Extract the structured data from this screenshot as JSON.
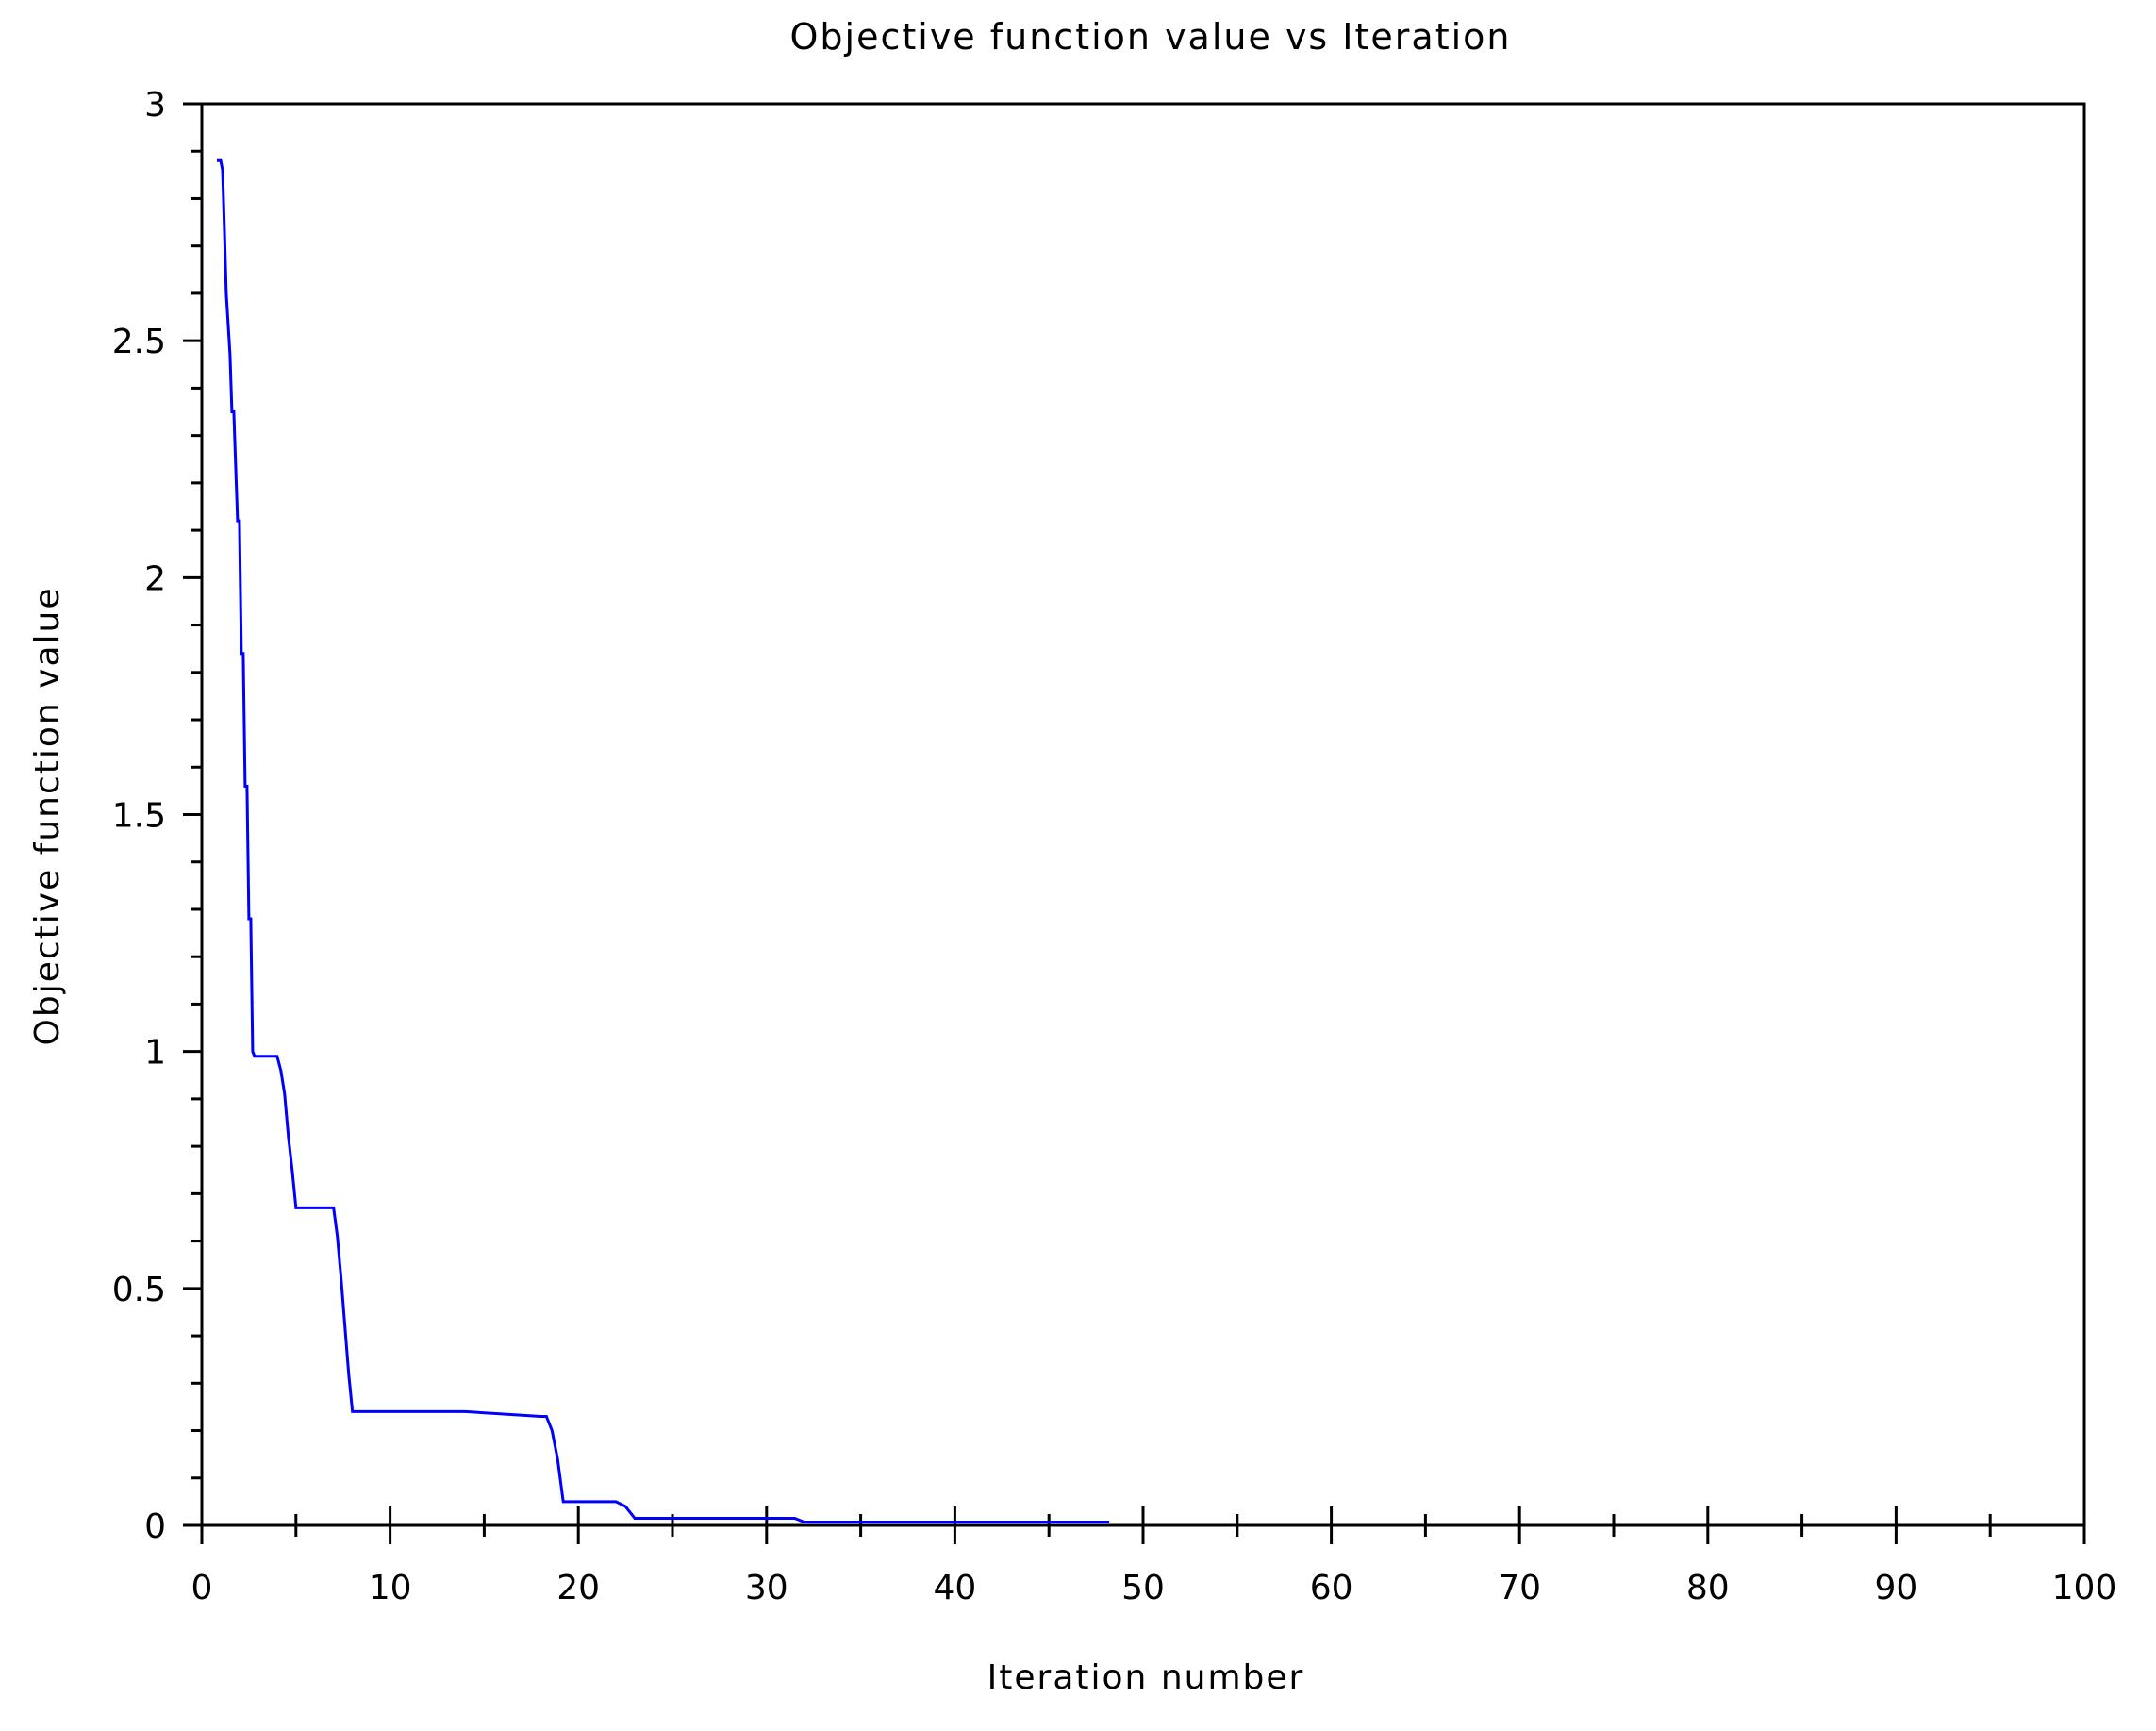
{
  "chart_data": {
    "type": "line",
    "title": "Objective function value vs Iteration",
    "xlabel": "Iteration number",
    "ylabel": "Objective function value",
    "xlim": [
      0,
      100
    ],
    "ylim": [
      0,
      3
    ],
    "x_ticks": [
      0,
      10,
      20,
      30,
      40,
      50,
      60,
      70,
      80,
      90,
      100
    ],
    "x_tick_labels": [
      "0",
      "10",
      "20",
      "30",
      "40",
      "50",
      "60",
      "70",
      "80",
      "90",
      "100"
    ],
    "y_ticks": [
      0,
      0.5,
      1,
      1.5,
      2,
      2.5,
      3
    ],
    "y_tick_labels": [
      "0",
      "0.5",
      "1",
      "1.5",
      "2",
      "2.5",
      "3"
    ],
    "grid": false,
    "legend": "none",
    "line_color": "#0000ff",
    "series": [
      {
        "x": [
          0.8,
          1.0,
          1.1,
          1.2,
          1.3,
          1.5,
          1.6,
          1.7,
          1.9,
          2.0,
          2.1,
          2.2,
          2.3,
          2.4,
          2.5,
          2.6,
          2.7,
          2.8,
          3.0,
          4.0,
          4.2,
          4.4,
          4.6,
          4.8,
          5.0,
          7.0,
          7.2,
          7.4,
          7.6,
          7.8,
          8.0,
          14.0,
          18.0,
          18.3,
          18.6,
          18.9,
          19.2,
          22.0,
          22.5,
          23.0,
          31.5,
          32.0,
          48.2
        ],
        "y": [
          2.88,
          2.88,
          2.86,
          2.73,
          2.6,
          2.47,
          2.35,
          2.35,
          2.12,
          2.12,
          1.84,
          1.84,
          1.56,
          1.56,
          1.28,
          1.28,
          1.0,
          0.99,
          0.99,
          0.99,
          0.96,
          0.91,
          0.82,
          0.75,
          0.67,
          0.67,
          0.61,
          0.52,
          0.42,
          0.32,
          0.24,
          0.24,
          0.23,
          0.23,
          0.2,
          0.14,
          0.05,
          0.05,
          0.04,
          0.015,
          0.015,
          0.007,
          0.007
        ]
      }
    ]
  }
}
